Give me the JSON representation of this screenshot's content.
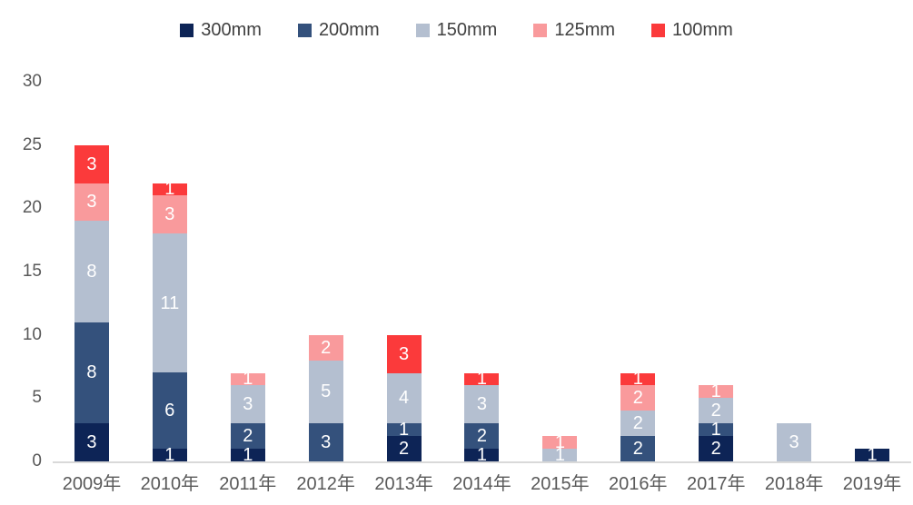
{
  "chart_data": {
    "type": "bar",
    "stacked": true,
    "title": "",
    "xlabel": "",
    "ylabel": "",
    "legend_position": "top",
    "grid": false,
    "ylim": [
      0,
      30
    ],
    "y_ticks": [
      0,
      5,
      10,
      15,
      20,
      25,
      30
    ],
    "categories": [
      "2009年",
      "2010年",
      "2011年",
      "2012年",
      "2013年",
      "2014年",
      "2015年",
      "2016年",
      "2017年",
      "2018年",
      "2019年"
    ],
    "series": [
      {
        "name": "300mm",
        "color": "#0d2456",
        "values": [
          3,
          1,
          1,
          0,
          2,
          1,
          0,
          0,
          2,
          0,
          1
        ]
      },
      {
        "name": "200mm",
        "color": "#34517c",
        "values": [
          8,
          6,
          2,
          3,
          1,
          2,
          0,
          2,
          1,
          0,
          0
        ]
      },
      {
        "name": "150mm",
        "color": "#b4bfd0",
        "values": [
          8,
          11,
          3,
          5,
          4,
          3,
          1,
          2,
          2,
          3,
          0
        ]
      },
      {
        "name": "125mm",
        "color": "#f99a9c",
        "values": [
          3,
          3,
          1,
          2,
          0,
          0,
          1,
          2,
          1,
          0,
          0
        ]
      },
      {
        "name": "100mm",
        "color": "#fb3a3b",
        "values": [
          3,
          1,
          0,
          0,
          3,
          1,
          0,
          1,
          0,
          0,
          0
        ]
      }
    ],
    "totals": [
      25,
      22,
      7,
      10,
      10,
      7,
      2,
      7,
      6,
      3,
      1
    ],
    "data_label_color": "#ffffff"
  },
  "legend": {
    "items": [
      {
        "label": "300mm",
        "color": "#0d2456"
      },
      {
        "label": "200mm",
        "color": "#34517c"
      },
      {
        "label": "150mm",
        "color": "#b4bfd0"
      },
      {
        "label": "125mm",
        "color": "#f99a9c"
      },
      {
        "label": "100mm",
        "color": "#fb3a3b"
      }
    ]
  },
  "colors": {
    "background": "#ffffff",
    "axis_text": "#595959",
    "legend_text": "#404040",
    "baseline": "#d9d9d9",
    "bar_label_text": "#ffffff"
  }
}
